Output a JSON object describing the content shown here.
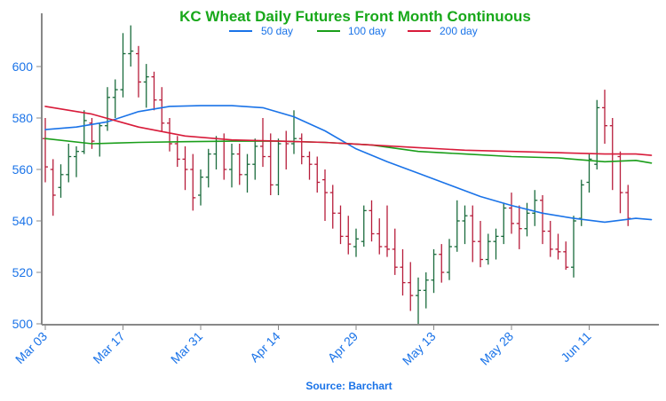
{
  "chart_data": {
    "type": "line",
    "title": "KC Wheat Daily Futures Front Month Continuous",
    "source": "Source: Barchart",
    "xlabel": "",
    "ylabel": "",
    "ylim": [
      500,
      620
    ],
    "y_ticks": [
      500,
      520,
      540,
      560,
      580,
      600
    ],
    "x_tick_labels": [
      "Mar 03",
      "Mar 17",
      "Mar 31",
      "Apr 14",
      "Apr 29",
      "May 13",
      "May 28",
      "Jun 11"
    ],
    "x_tick_index": [
      0,
      10,
      20,
      30,
      40,
      50,
      60,
      70
    ],
    "grid": false,
    "legend_position": "top-center",
    "colors": {
      "up": "#1a6b3c",
      "down": "#b71c3a",
      "title": "#18a81a",
      "axis": "#1a73e8"
    },
    "series": [
      {
        "name": "50 day",
        "color": "#1a73e8",
        "x": [
          0,
          4,
          8,
          12,
          16,
          20,
          24,
          28,
          32,
          36,
          40,
          44,
          48,
          52,
          56,
          60,
          64,
          68,
          72,
          76,
          78
        ],
        "values": [
          575.5,
          576.5,
          578.5,
          582.5,
          584.5,
          584.8,
          584.8,
          584.0,
          580.5,
          575.0,
          568.0,
          563.0,
          558.5,
          554.0,
          549.5,
          546.0,
          543.0,
          541.0,
          539.5,
          541.0,
          540.5
        ]
      },
      {
        "name": "100 day",
        "color": "#1a9e1a",
        "x": [
          0,
          6,
          12,
          18,
          24,
          30,
          36,
          42,
          48,
          54,
          60,
          66,
          72,
          76,
          78
        ],
        "values": [
          572.0,
          570.0,
          570.5,
          570.8,
          571.0,
          571.0,
          570.5,
          569.5,
          567.0,
          566.0,
          565.0,
          564.5,
          563.0,
          563.5,
          562.5
        ]
      },
      {
        "name": "200 day",
        "color": "#d81b3a",
        "x": [
          0,
          6,
          12,
          18,
          24,
          30,
          36,
          42,
          48,
          54,
          60,
          66,
          72,
          76,
          78
        ],
        "values": [
          584.5,
          581.5,
          576.5,
          573.0,
          571.5,
          571.0,
          570.5,
          569.5,
          568.5,
          567.5,
          567.0,
          566.5,
          566.0,
          566.0,
          565.5
        ]
      }
    ],
    "ohlc_columns": [
      "open",
      "high",
      "low",
      "close"
    ],
    "ohlc": [
      [
        572,
        580,
        555,
        561
      ],
      [
        560,
        564,
        542,
        550
      ],
      [
        553,
        562,
        549,
        558
      ],
      [
        558,
        570,
        555,
        565
      ],
      [
        565,
        569,
        557,
        567
      ],
      [
        567,
        583,
        566,
        579
      ],
      [
        578,
        580,
        568,
        571
      ],
      [
        570,
        578,
        565,
        577
      ],
      [
        577,
        592,
        575,
        588
      ],
      [
        588,
        595,
        580,
        591
      ],
      [
        591,
        613,
        588,
        605
      ],
      [
        605,
        616,
        600,
        606
      ],
      [
        605,
        608,
        588,
        594
      ],
      [
        594,
        601,
        584,
        596
      ],
      [
        596,
        598,
        583,
        587
      ],
      [
        587,
        592,
        575,
        578
      ],
      [
        578,
        580,
        567,
        570
      ],
      [
        570,
        573,
        561,
        564
      ],
      [
        564,
        569,
        552,
        560
      ],
      [
        560,
        566,
        544,
        549
      ],
      [
        550,
        560,
        546,
        557
      ],
      [
        557,
        568,
        553,
        566
      ],
      [
        566,
        573,
        560,
        571
      ],
      [
        571,
        574,
        556,
        560
      ],
      [
        560,
        570,
        553,
        566
      ],
      [
        566,
        570,
        554,
        558
      ],
      [
        558,
        566,
        551,
        562
      ],
      [
        562,
        572,
        556,
        569
      ],
      [
        569,
        580,
        561,
        565
      ],
      [
        565,
        574,
        550,
        554
      ],
      [
        554,
        572,
        550,
        570
      ],
      [
        571,
        575,
        560,
        570
      ],
      [
        570,
        583,
        566,
        572
      ],
      [
        572,
        574,
        562,
        565
      ],
      [
        565,
        567,
        556,
        562
      ],
      [
        562,
        565,
        551,
        555
      ],
      [
        556,
        560,
        540,
        551
      ],
      [
        551,
        554,
        537,
        543
      ],
      [
        543,
        546,
        531,
        534
      ],
      [
        534,
        542,
        527,
        531
      ],
      [
        530,
        537,
        526,
        533
      ],
      [
        532,
        546,
        530,
        544
      ],
      [
        544,
        548,
        532,
        535
      ],
      [
        535,
        541,
        527,
        530
      ],
      [
        530,
        546,
        526,
        529
      ],
      [
        529,
        537,
        519,
        522
      ],
      [
        522,
        529,
        511,
        516
      ],
      [
        516,
        524,
        505,
        511
      ],
      [
        511,
        518,
        500,
        513
      ],
      [
        513,
        520,
        506,
        517
      ],
      [
        517,
        529,
        512,
        527
      ],
      [
        527,
        531,
        516,
        520
      ],
      [
        520,
        533,
        517,
        530
      ],
      [
        530,
        548,
        528,
        540
      ],
      [
        540,
        546,
        531,
        542
      ],
      [
        542,
        546,
        524,
        532
      ],
      [
        532,
        540,
        522,
        525
      ],
      [
        525,
        535,
        523,
        532
      ],
      [
        532,
        537,
        525,
        534
      ],
      [
        534,
        547,
        531,
        545
      ],
      [
        545,
        551,
        535,
        539
      ],
      [
        539,
        546,
        529,
        537
      ],
      [
        537,
        547,
        534,
        543
      ],
      [
        543,
        552,
        538,
        548
      ],
      [
        548,
        550,
        531,
        536
      ],
      [
        536,
        540,
        526,
        529
      ],
      [
        529,
        535,
        525,
        528
      ],
      [
        528,
        532,
        521,
        522
      ],
      [
        522,
        542,
        518,
        540
      ],
      [
        541,
        556,
        538,
        554
      ],
      [
        555,
        566,
        551,
        564
      ],
      [
        562,
        587,
        560,
        584
      ],
      [
        584,
        591,
        570,
        577
      ],
      [
        577,
        580,
        552,
        566
      ],
      [
        565,
        567,
        543,
        551
      ],
      [
        551,
        554,
        538,
        541
      ]
    ]
  }
}
